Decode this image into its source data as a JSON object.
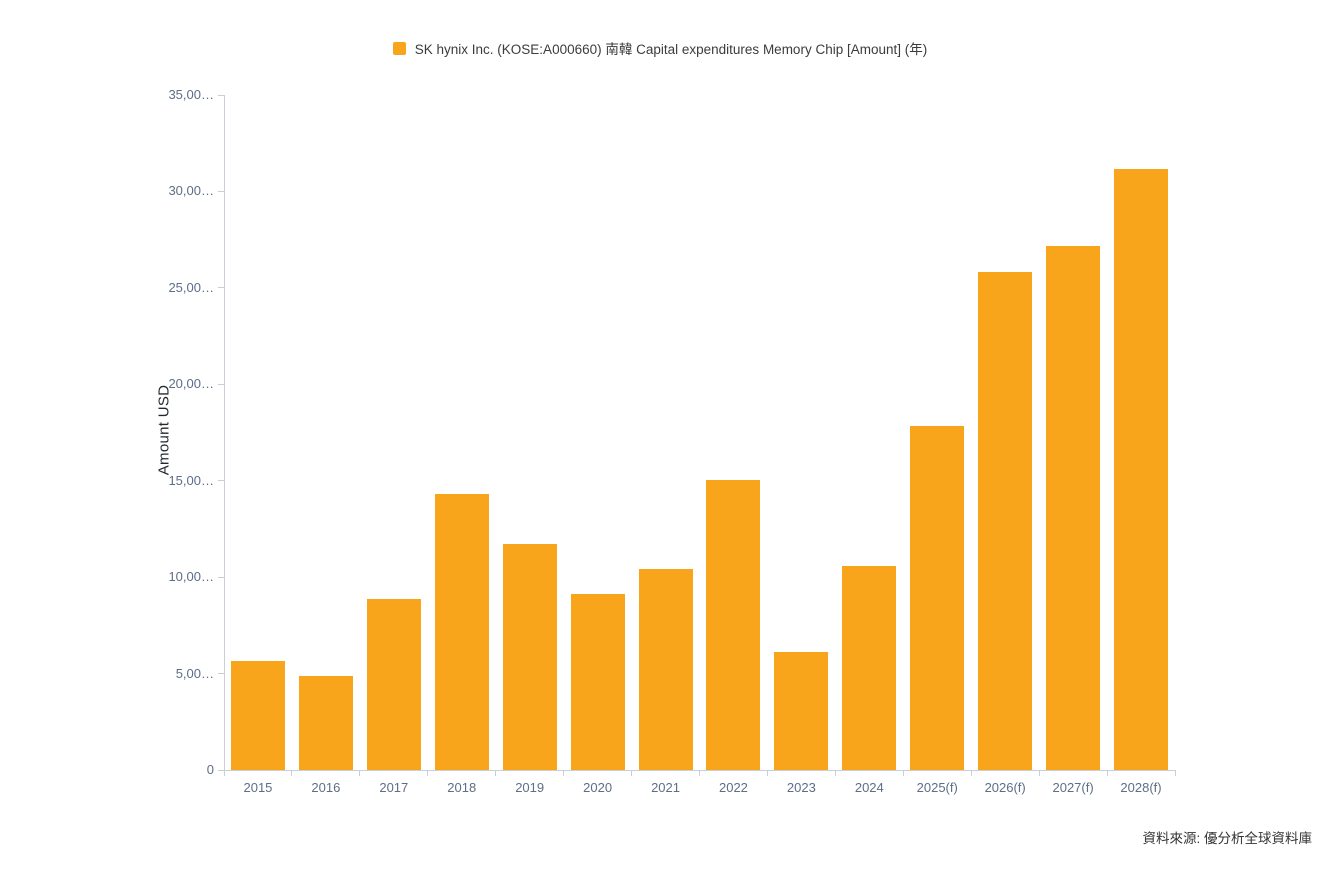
{
  "chart_data": {
    "type": "bar",
    "title": "SK hynix Inc. (KOSE:A000660) 南韓 Capital expenditures Memory Chip [Amount] (年)",
    "categories": [
      "2015",
      "2016",
      "2017",
      "2018",
      "2019",
      "2020",
      "2021",
      "2022",
      "2023",
      "2024",
      "2025(f)",
      "2026(f)",
      "2027(f)",
      "2028(f)"
    ],
    "values": [
      5650,
      4900,
      8850,
      14300,
      11700,
      9150,
      10400,
      15050,
      6100,
      10600,
      17850,
      25800,
      27150,
      31150
    ],
    "xlabel": "",
    "ylabel": "Amount USD",
    "ylim": [
      0,
      35000
    ],
    "ytick_step": 5000,
    "ytick_labels": [
      "0",
      "5,00…",
      "10,00…",
      "15,00…",
      "20,00…",
      "25,00…",
      "30,00…",
      "35,00…"
    ],
    "bar_color": "#F9A51B",
    "legend_position": "top",
    "grid": false
  },
  "legend": {
    "series_label": "SK hynix Inc. (KOSE:A000660) 南韓 Capital expenditures Memory Chip [Amount] (年)"
  },
  "y_axis": {
    "title": "Amount USD"
  },
  "footer": {
    "source": "資料來源: 優分析全球資料庫"
  },
  "colors": {
    "bar": "#F9A51B",
    "axis_line": "#c9cfda",
    "tick_label": "#5e6e87",
    "dark_text": "#333333"
  }
}
